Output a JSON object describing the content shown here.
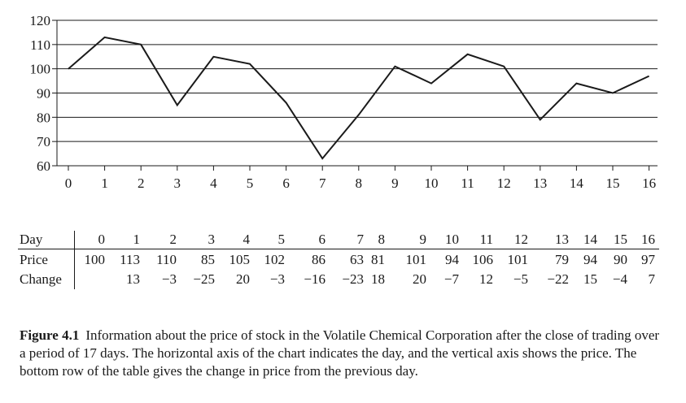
{
  "chart_data": {
    "type": "line",
    "x": [
      0,
      1,
      2,
      3,
      4,
      5,
      6,
      7,
      8,
      9,
      10,
      11,
      12,
      13,
      14,
      15,
      16
    ],
    "series": [
      {
        "values": [
          100,
          113,
          110,
          85,
          105,
          102,
          86,
          63,
          81,
          101,
          94,
          106,
          101,
          79,
          94,
          90,
          97
        ]
      }
    ],
    "xlim": [
      0,
      16
    ],
    "ylim": [
      60,
      120
    ],
    "yticks": [
      60,
      70,
      80,
      90,
      100,
      110,
      120
    ],
    "xticks": [
      0,
      1,
      2,
      3,
      4,
      5,
      6,
      7,
      8,
      9,
      10,
      11,
      12,
      13,
      14,
      15,
      16
    ],
    "grid": "horizontal",
    "line_color": "#1a1a1a"
  },
  "table": {
    "rows": [
      {
        "label": "Day",
        "values": [
          "0",
          "1",
          "2",
          "3",
          "4",
          "5",
          "6",
          "7",
          "8",
          "9",
          "10",
          "11",
          "12",
          "13",
          "14",
          "15",
          "16"
        ]
      },
      {
        "label": "Price",
        "values": [
          "100",
          "113",
          "110",
          "85",
          "105",
          "102",
          "86",
          "63",
          "81",
          "101",
          "94",
          "106",
          "101",
          "79",
          "94",
          "90",
          "97"
        ]
      },
      {
        "label": "Change",
        "values": [
          "",
          "13",
          "−3",
          "−25",
          "20",
          "−3",
          "−16",
          "−23",
          "18",
          "20",
          "−7",
          "12",
          "−5",
          "−22",
          "15",
          "−4",
          "7"
        ]
      }
    ]
  },
  "caption": {
    "label": "Figure 4.1",
    "text": "Information about the price of stock in the Volatile Chemical Corporation after the close of trading over a period of 17 days. The horizontal axis of the chart indicates the day, and the vertical axis shows the price. The bottom row of the table gives the change in price from the previous day."
  }
}
